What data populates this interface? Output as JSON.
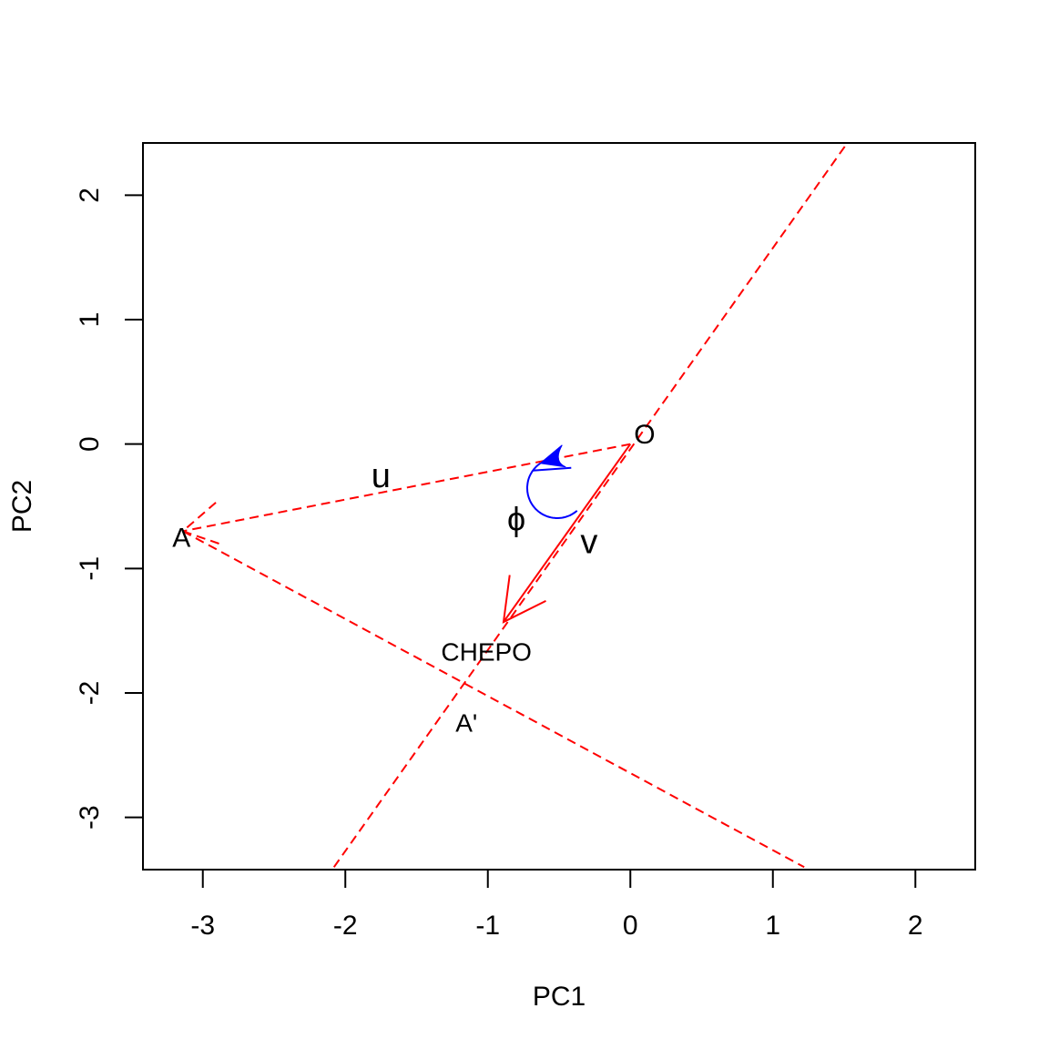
{
  "chart_data": {
    "type": "scatter",
    "xlabel": "PC1",
    "ylabel": "PC2",
    "xlim": [
      -3.42,
      2.42
    ],
    "ylim": [
      -3.42,
      2.42
    ],
    "x_ticks": [
      -3,
      -2,
      -1,
      0,
      1,
      2
    ],
    "y_ticks": [
      -3,
      -2,
      -1,
      0,
      1,
      2
    ],
    "grid": false,
    "colors": {
      "lines": "#ff0000",
      "angle": "#0000ff",
      "text": "#000000"
    },
    "points": {
      "O": {
        "label": "O",
        "x": 0,
        "y": 0
      },
      "A": {
        "label": "A",
        "x": -3.14,
        "y": -0.7
      },
      "CHEPO": {
        "label": "CHEPO",
        "x": -0.89,
        "y": -1.43
      },
      "A_prime": {
        "label": "A'",
        "x": -1.18,
        "y": -1.92
      }
    },
    "dashed_lines": [
      {
        "name": "axis-line-v",
        "from": [
          -2.08,
          -3.4
        ],
        "to": [
          1.51,
          2.4
        ]
      },
      {
        "name": "line-u",
        "from": [
          0,
          0
        ],
        "to": [
          -3.14,
          -0.7
        ]
      },
      {
        "name": "projection-line",
        "from": [
          -3.14,
          -0.7
        ],
        "to": [
          1.22,
          -3.4
        ]
      }
    ],
    "arrow_v": {
      "from": [
        0,
        0
      ],
      "to": [
        -0.89,
        -1.43
      ]
    },
    "annotations": [
      {
        "name": "label-u",
        "text": "u",
        "x": -1.75,
        "y": -0.25
      },
      {
        "name": "label-v",
        "text": "v",
        "x": -0.29,
        "y": -0.78
      },
      {
        "name": "label-phi",
        "text": "ϕ",
        "x": -0.8,
        "y": -0.6
      },
      {
        "name": "label-O",
        "text": "O",
        "x": 0.1,
        "y": 0.08
      },
      {
        "name": "label-A",
        "text": "A",
        "x": -3.15,
        "y": -0.75
      },
      {
        "name": "label-CHEPO",
        "text": "CHEPO",
        "x": -1.01,
        "y": -1.67
      },
      {
        "name": "label-A-prime",
        "text": "A'",
        "x": -1.15,
        "y": -2.24
      }
    ]
  }
}
